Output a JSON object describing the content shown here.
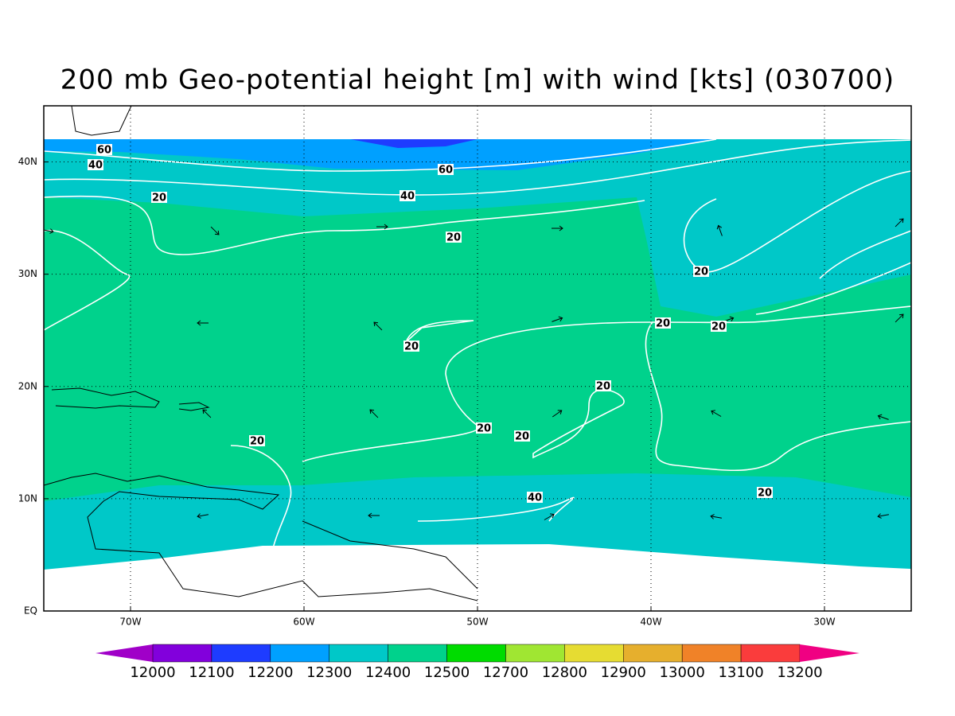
{
  "chart_data": {
    "type": "map",
    "title": "200 mb Geo-potential height [m] with wind [kts] (030700)",
    "xlim": [
      -75,
      -25
    ],
    "ylim": [
      0,
      45
    ],
    "xticks": [
      {
        "value": -70,
        "label": "70W"
      },
      {
        "value": -60,
        "label": "60W"
      },
      {
        "value": -50,
        "label": "50W"
      },
      {
        "value": -40,
        "label": "40W"
      },
      {
        "value": -30,
        "label": "30W"
      }
    ],
    "yticks": [
      {
        "value": 0,
        "label": "EQ"
      },
      {
        "value": 10,
        "label": "10N"
      },
      {
        "value": 20,
        "label": "20N"
      },
      {
        "value": 30,
        "label": "30N"
      },
      {
        "value": 40,
        "label": "40N"
      }
    ],
    "grid": true,
    "contour_labels": [
      60,
      40,
      60,
      40,
      20,
      20,
      20,
      20,
      20,
      20,
      20,
      20,
      20,
      20,
      20,
      40
    ],
    "colorbar": {
      "labels": [
        12000,
        12100,
        12200,
        12300,
        12400,
        12500,
        12700,
        12800,
        12900,
        13000,
        13100,
        13200
      ],
      "colors": [
        "#a000c8",
        "#8200dc",
        "#1e3cff",
        "#00a0ff",
        "#00c8c8",
        "#00d28c",
        "#00dc00",
        "#a0e632",
        "#e6dc32",
        "#e6af2d",
        "#f08228",
        "#fa3c3c",
        "#f00082"
      ]
    }
  }
}
